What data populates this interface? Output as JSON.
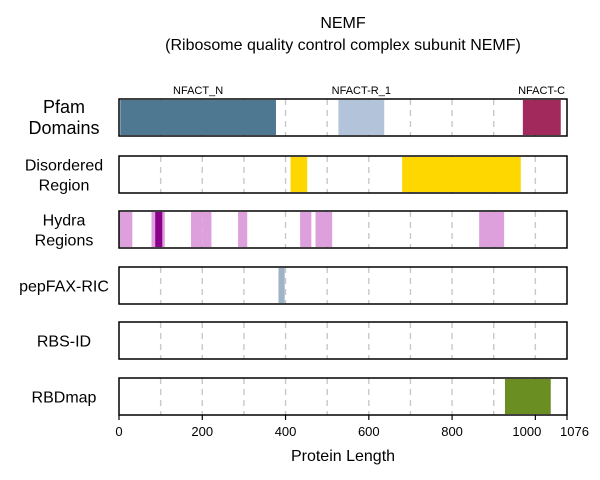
{
  "chart_data": {
    "type": "bar",
    "title_lines": [
      "NEMF",
      "(Ribosome quality control complex subunit NEMF)"
    ],
    "xlabel": "Protein Length",
    "xlim": [
      0,
      1076
    ],
    "xticks": [
      0,
      200,
      400,
      600,
      800,
      1000,
      1076
    ],
    "grid_x": [
      100,
      200,
      300,
      400,
      500,
      600,
      700,
      800,
      900,
      1000
    ],
    "tracks": [
      {
        "label": [
          "Pfam",
          "Domains"
        ],
        "segments": [
          {
            "start": 3,
            "end": 377,
            "color": "#4e7891"
          },
          {
            "start": 527,
            "end": 637,
            "color": "#b3c4da"
          },
          {
            "start": 970,
            "end": 1061,
            "color": "#a2295b"
          }
        ],
        "domain_labels": [
          {
            "text": "NFACT_N",
            "center": 190
          },
          {
            "text": "NFACT-R_1",
            "center": 582
          },
          {
            "text": "NFACT-C",
            "center": 1015
          }
        ]
      },
      {
        "label": [
          "Disordered",
          "Region"
        ],
        "segments": [
          {
            "start": 412,
            "end": 452,
            "color": "#ffd700"
          },
          {
            "start": 680,
            "end": 965,
            "color": "#ffd700"
          }
        ]
      },
      {
        "label": [
          "Hydra",
          "Regions"
        ],
        "segments": [
          {
            "start": 0,
            "end": 32,
            "color": "#dda0dd"
          },
          {
            "start": 78,
            "end": 110,
            "color": "#dda0dd"
          },
          {
            "start": 87,
            "end": 104,
            "color": "#8b008b"
          },
          {
            "start": 173,
            "end": 200,
            "color": "#dda0dd"
          },
          {
            "start": 200,
            "end": 222,
            "color": "#dda0dd"
          },
          {
            "start": 286,
            "end": 308,
            "color": "#dda0dd"
          },
          {
            "start": 435,
            "end": 462,
            "color": "#dda0dd"
          },
          {
            "start": 472,
            "end": 512,
            "color": "#dda0dd"
          },
          {
            "start": 865,
            "end": 925,
            "color": "#dda0dd"
          }
        ]
      },
      {
        "label": [
          "pepFAX-RIC"
        ],
        "segments": [
          {
            "start": 383,
            "end": 398,
            "color": "#9fb4c7"
          }
        ]
      },
      {
        "label": [
          "RBS-ID"
        ],
        "segments": []
      },
      {
        "label": [
          "RBDmap"
        ],
        "segments": [
          {
            "start": 927,
            "end": 1037,
            "color": "#6b8e23"
          }
        ]
      }
    ]
  }
}
